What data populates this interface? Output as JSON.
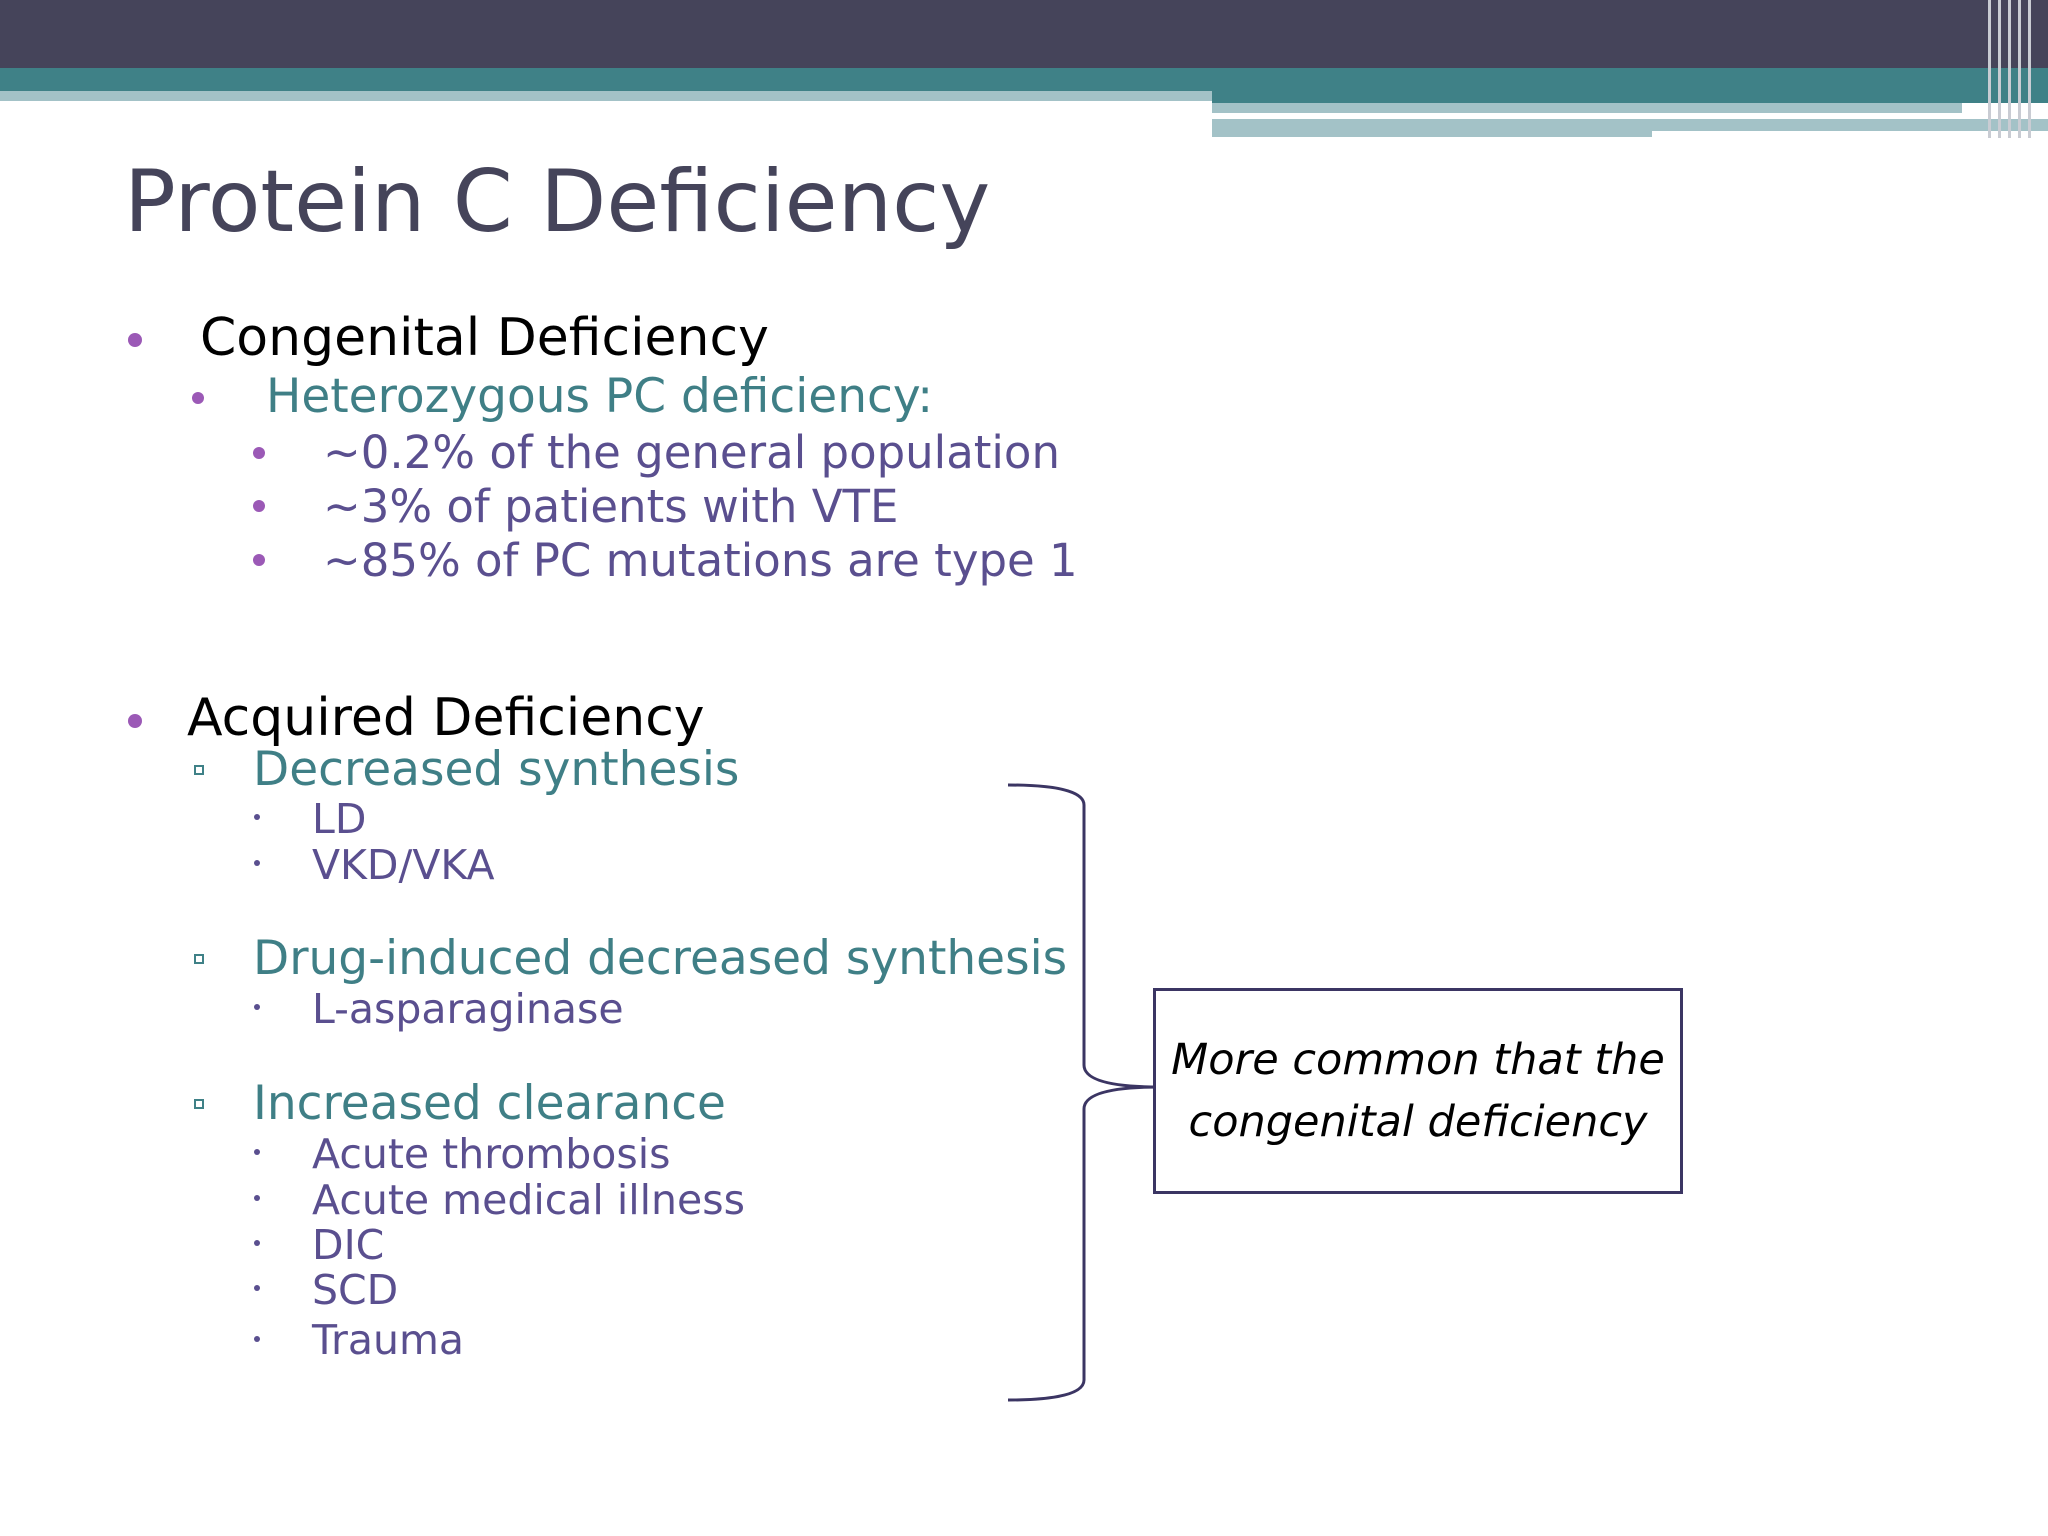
{
  "title": "Protein C Deficiency",
  "congenital": {
    "heading": "Congenital Deficiency",
    "subheading": "Heterozygous PC deficiency:",
    "items": [
      "~0.2% of the general population",
      "~3% of patients with VTE",
      "~85% of PC mutations are type 1"
    ]
  },
  "acquired": {
    "heading": "Acquired Deficiency",
    "groups": [
      {
        "label": "Decreased synthesis",
        "items": [
          "LD",
          "VKD/VKA"
        ]
      },
      {
        "label": "Drug-induced decreased synthesis",
        "items": [
          "L-asparaginase"
        ]
      },
      {
        "label": "Increased clearance",
        "items": [
          "Acute thrombosis",
          "Acute medical illness",
          "DIC",
          "SCD",
          "Trauma"
        ]
      }
    ]
  },
  "callout": {
    "line1": "More common that the",
    "line2": "congenital deficiency"
  },
  "colors": {
    "dark_bar": "#45445a",
    "teal_bar": "#3f8187",
    "light_bar": "#a3c2c7",
    "bullet_purple": "#9b59b6",
    "level2_teal": "#3f7f86",
    "level3_purple": "#5a4f8f"
  }
}
